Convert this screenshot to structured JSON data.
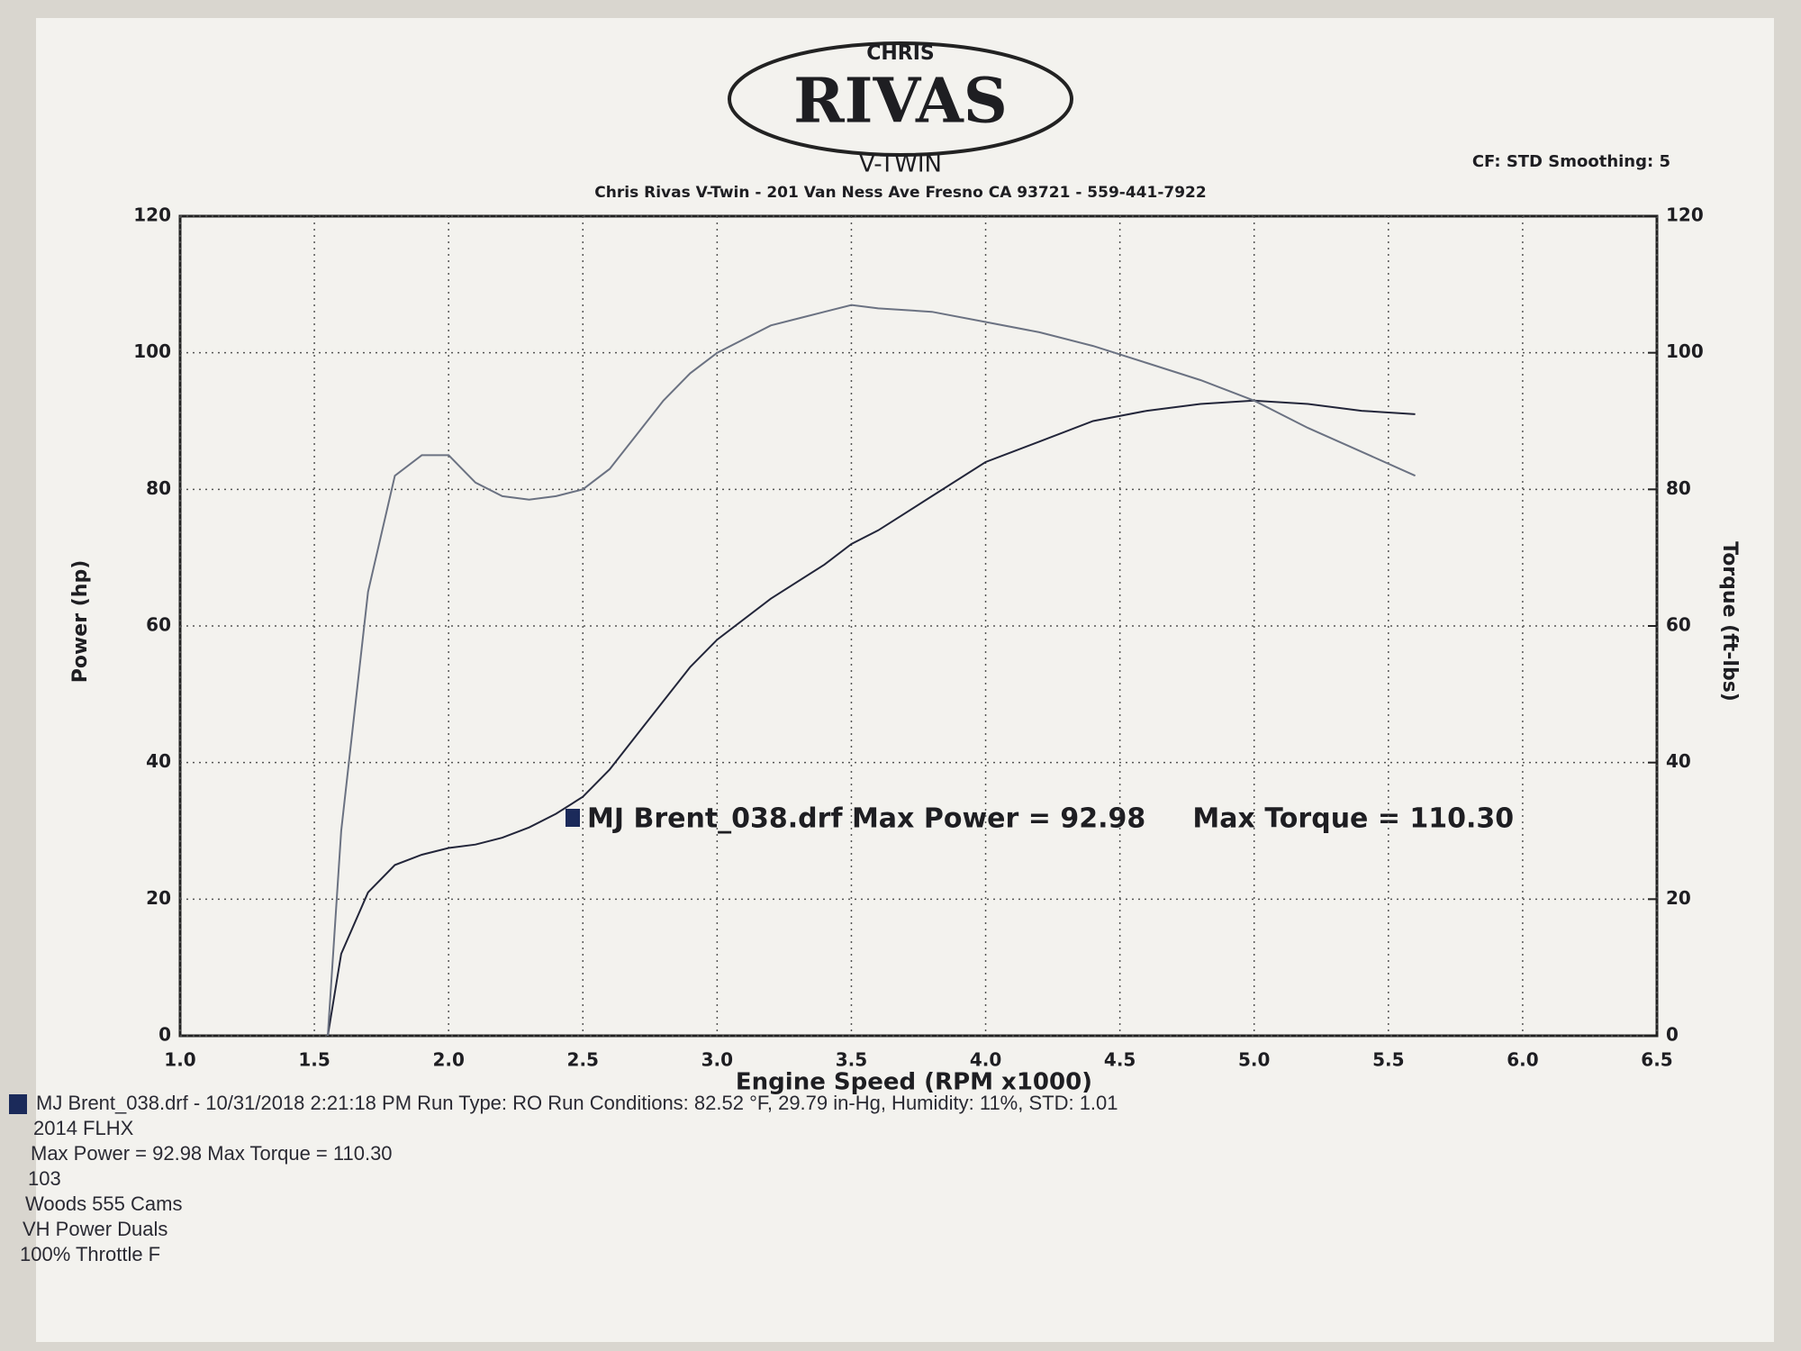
{
  "header": {
    "logo_top": "CHRIS",
    "logo_main": "RIVAS",
    "logo_bottom": "V-TWIN",
    "settings": "CF: STD  Smoothing: 5"
  },
  "chart_data": {
    "type": "line",
    "title": "Chris Rivas V-Twin - 201 Van Ness Ave Fresno CA 93721 - 559-441-7922",
    "x_label": "Engine Speed (RPM x1000)",
    "y_label": "Power (hp)",
    "y2_label": "Torque (ft-lbs)",
    "annotation": "MJ Brent_038.drf Max Power = 92.98     Max Torque = 110.30",
    "x": [
      1.55,
      1.6,
      1.7,
      1.8,
      1.9,
      2.0,
      2.1,
      2.2,
      2.3,
      2.4,
      2.5,
      2.6,
      2.7,
      2.8,
      2.9,
      3.0,
      3.2,
      3.4,
      3.5,
      3.6,
      3.8,
      4.0,
      4.2,
      4.4,
      4.6,
      4.8,
      5.0,
      5.2,
      5.4,
      5.6
    ],
    "series": [
      {
        "color": "#23263a",
        "values": [
          0,
          12,
          21,
          25,
          26.5,
          27.5,
          28,
          29,
          30.5,
          32.5,
          35,
          39,
          44,
          49,
          54,
          58,
          64,
          69,
          72,
          74,
          79,
          84,
          87,
          90,
          91.5,
          92.5,
          93,
          92.5,
          91.5,
          91
        ]
      },
      {
        "color": "#6b7282",
        "axis": "y2",
        "values": [
          0,
          30,
          65,
          82,
          85,
          85,
          81,
          79,
          78.5,
          79,
          80,
          83,
          88,
          93,
          97,
          100,
          104,
          106,
          107,
          106.5,
          106,
          104.5,
          103,
          101,
          98.5,
          96,
          93,
          89,
          85.5,
          82
        ]
      }
    ],
    "xlim": [
      1,
      6.5
    ],
    "xticks": [
      {
        "value": 1,
        "label": "1.0"
      },
      1.5,
      {
        "value": 2,
        "label": "2.0"
      },
      2.5,
      {
        "value": 3,
        "label": "3.0"
      },
      3.5,
      {
        "value": 4,
        "label": "4.0"
      },
      4.5,
      {
        "value": 5,
        "label": "5.0"
      },
      5.5,
      {
        "value": 6,
        "label": "6.0"
      },
      6.5
    ],
    "ylim": [
      0,
      120
    ],
    "yticks": [
      0,
      20,
      40,
      60,
      80,
      100,
      120
    ],
    "y2lim": [
      0,
      120
    ],
    "y2ticks": [
      0,
      20,
      40,
      60,
      80,
      100,
      120
    ],
    "grid": true
  },
  "notes": [
    "MJ Brent_038.drf - 10/31/2018 2:21:18 PM  Run Type: RO  Run Conditions: 82.52 °F, 29.79 in-Hg,  Humidity:  11%, STD: 1.01",
    "2014 FLHX",
    "Max Power = 92.98  Max Torque = 110.30",
    "103",
    "Woods 555 Cams",
    "VH Power Duals",
    "100% Throttle F"
  ]
}
